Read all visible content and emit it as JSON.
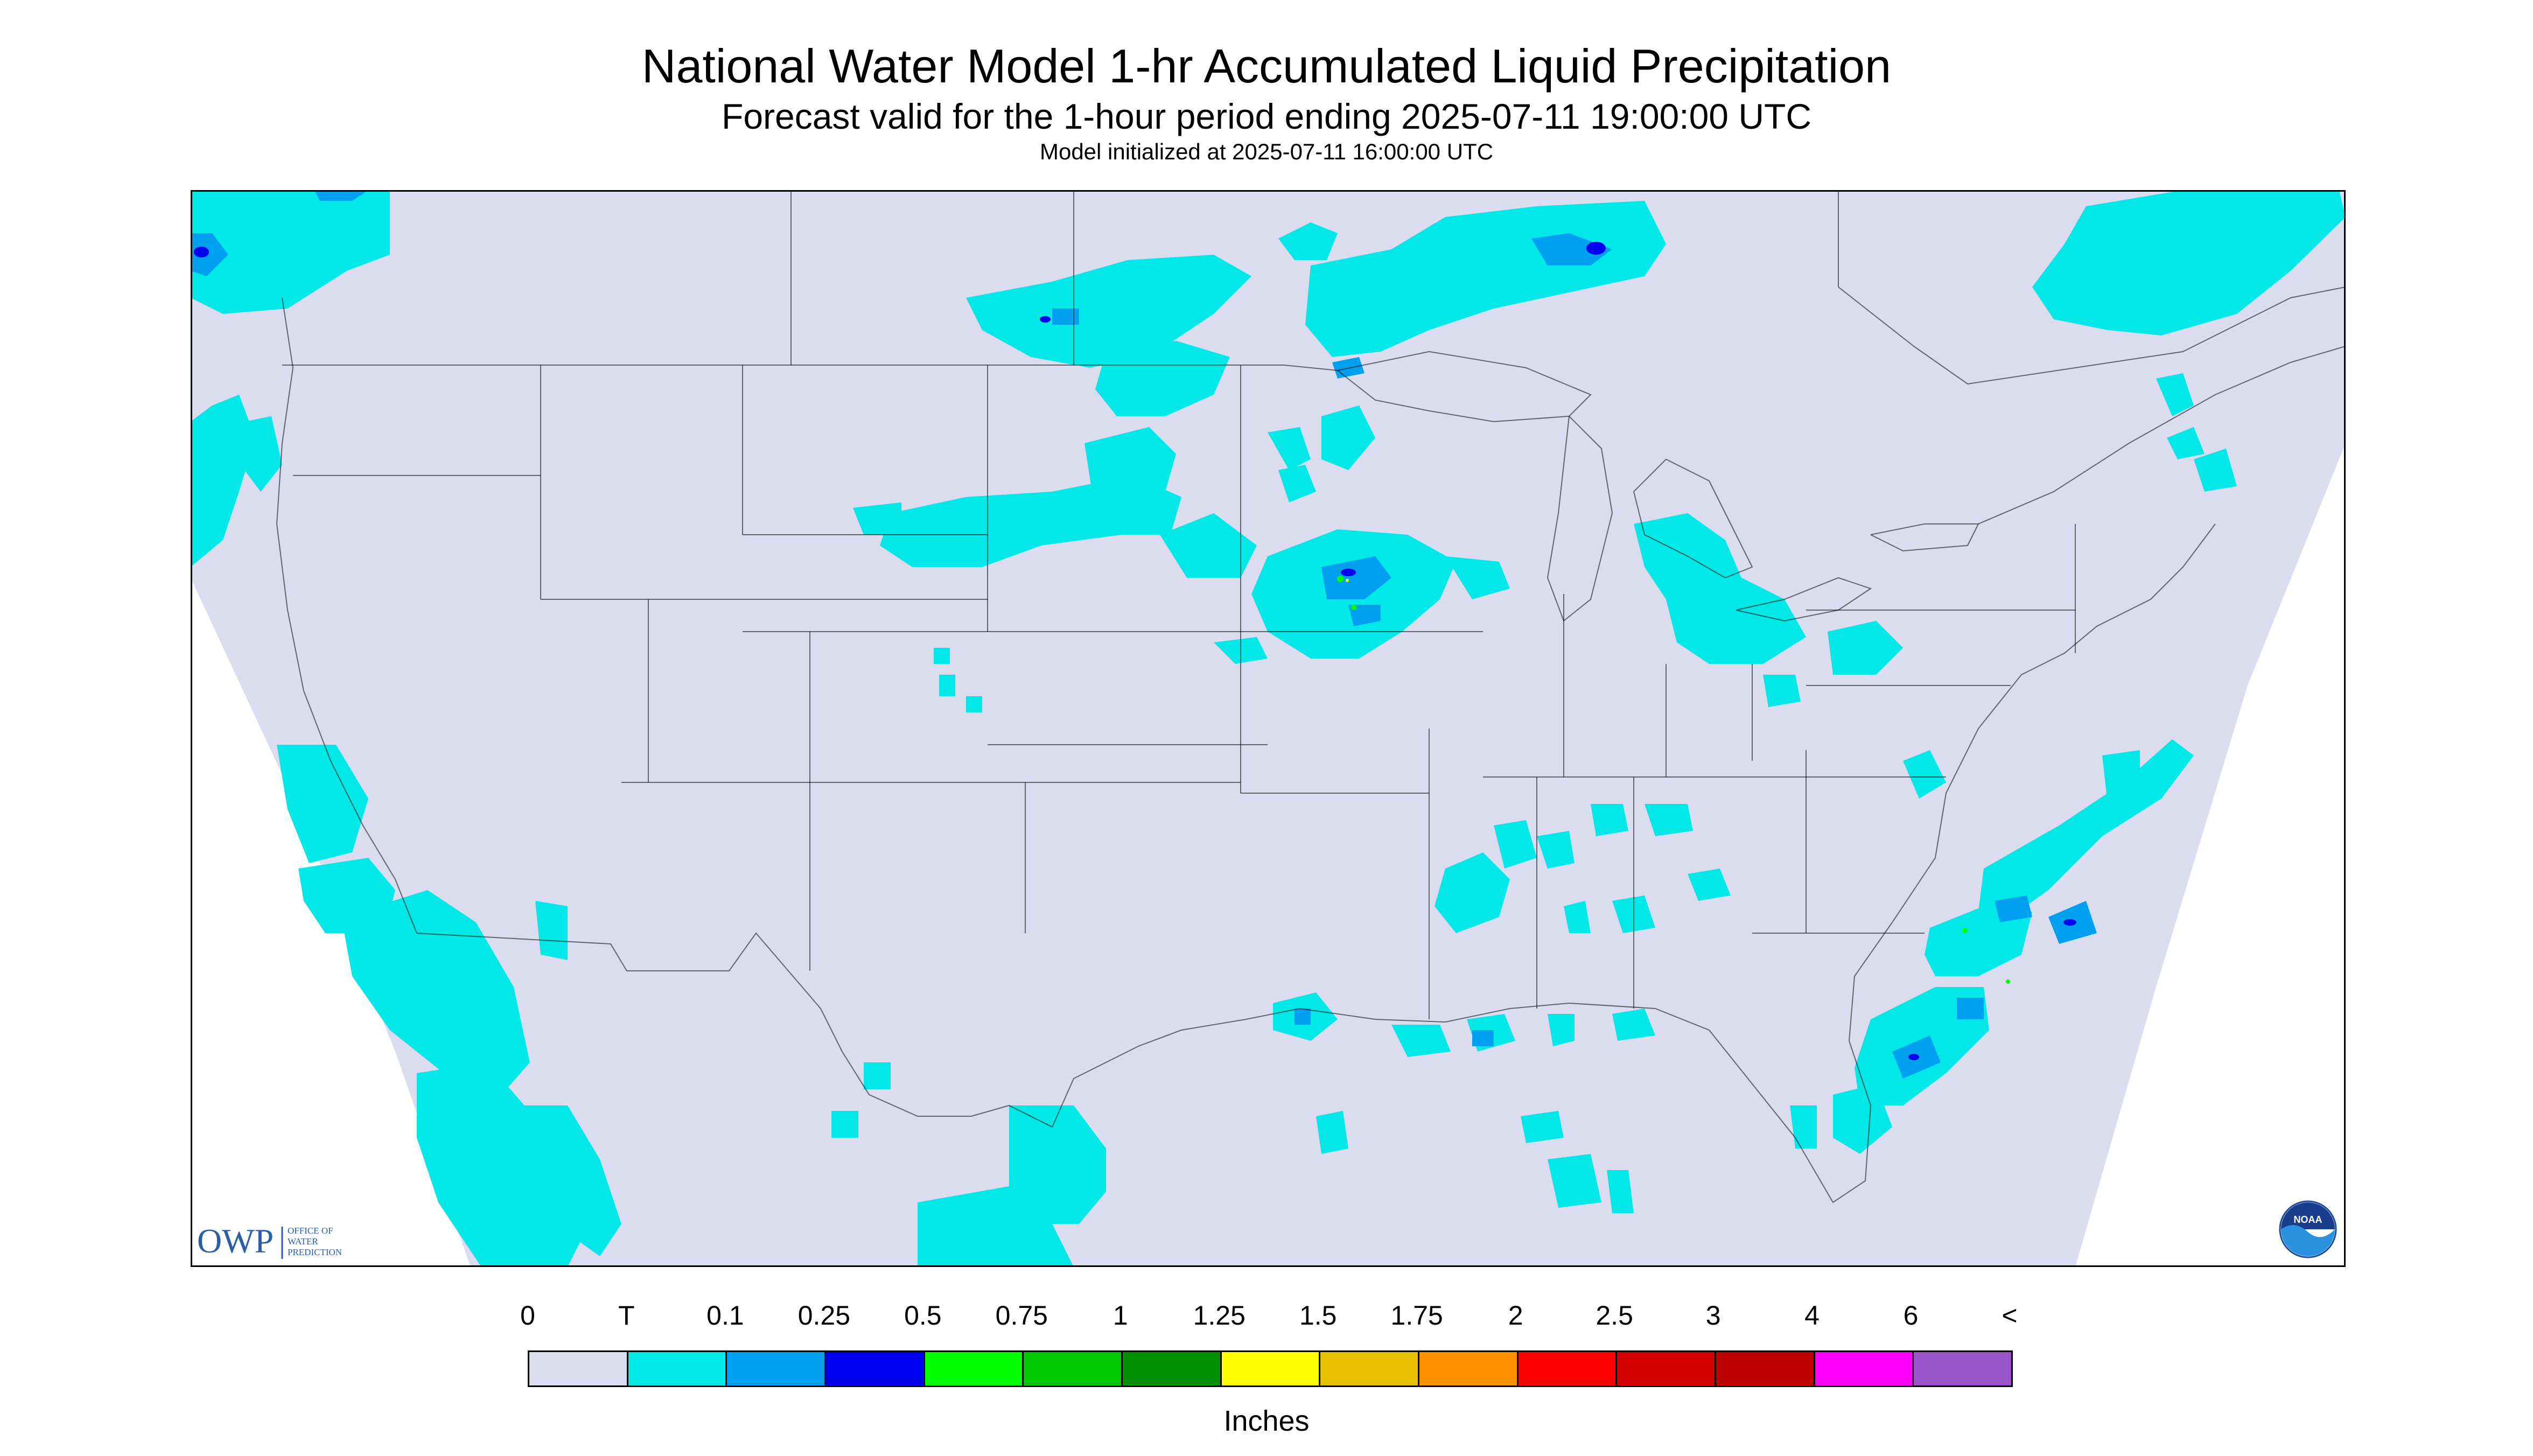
{
  "header": {
    "title": "National Water Model 1-hr Accumulated Liquid Precipitation",
    "subtitle": "Forecast valid for the 1-hour period ending 2025-07-11 19:00:00 UTC",
    "init": "Model initialized at 2025-07-11 16:00:00 UTC"
  },
  "logos": {
    "owp_abbr": "OWP",
    "owp_line1": "OFFICE OF",
    "owp_line2": "WATER",
    "owp_line3": "PREDICTION",
    "noaa_text": "NOAA"
  },
  "legend": {
    "units": "Inches",
    "labels": [
      "0",
      "T",
      "0.1",
      "0.25",
      "0.5",
      "0.75",
      "1",
      "1.25",
      "1.5",
      "1.75",
      "2",
      "2.5",
      "3",
      "4",
      "6",
      "<"
    ],
    "colors": [
      "#dcdcf0",
      "#00e8e8",
      "#00a0f0",
      "#0000f0",
      "#00ff00",
      "#00c800",
      "#009000",
      "#ffff00",
      "#e7c000",
      "#ff9000",
      "#ff0000",
      "#d60000",
      "#c00000",
      "#ff00ff",
      "#9955c9"
    ]
  },
  "map": {
    "background": "#dcdcf0",
    "outside": "#ffffff",
    "border_color": "#000000"
  }
}
